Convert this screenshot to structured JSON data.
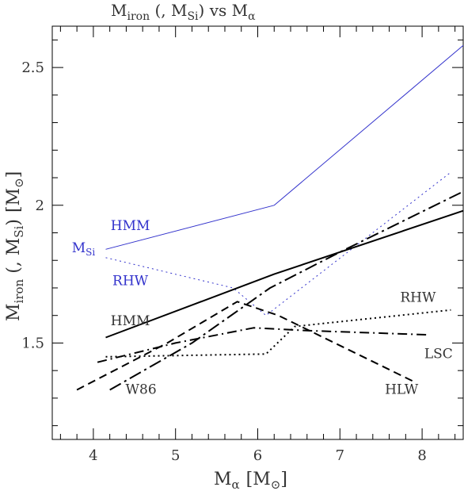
{
  "chart_data": {
    "type": "line",
    "title": {
      "prefix": "M",
      "prefix_sub": "iron",
      "mid": " (, M",
      "mid_sub": "Si",
      "suffix": ") vs M",
      "suffix_sub": "α"
    },
    "xlabel": {
      "base": "M",
      "sub": "α",
      "unit": "[M",
      "unit_sub": "⊙",
      "unit_close": "]"
    },
    "ylabel": {
      "base": "M",
      "sub": "iron",
      "mid": " (, M",
      "mid_sub": "Si",
      "close": ")",
      "unit": "[M",
      "unit_sub": "⊙",
      "unit_close": "]"
    },
    "xlim": [
      3.5,
      8.5
    ],
    "ylim": [
      1.15,
      2.65
    ],
    "x_ticks": [
      4,
      5,
      6,
      7,
      8
    ],
    "y_ticks": [
      1.5,
      2,
      2.5
    ],
    "grid": false,
    "series": [
      {
        "key": "hmm_si",
        "color": "#3333cc",
        "style": "solid",
        "width": 1,
        "x": [
          4.15,
          6.2,
          8.5
        ],
        "y": [
          1.84,
          2.0,
          2.58
        ]
      },
      {
        "key": "rhw_si",
        "color": "#3333cc",
        "style": "dotted",
        "width": 1,
        "x": [
          4.15,
          5.7,
          6.1,
          8.35
        ],
        "y": [
          1.81,
          1.7,
          1.6,
          2.12
        ]
      },
      {
        "key": "hmm",
        "color": "#000000",
        "style": "solid",
        "width": 2,
        "x": [
          4.15,
          6.2,
          8.5
        ],
        "y": [
          1.52,
          1.75,
          1.98
        ]
      },
      {
        "key": "rhw",
        "color": "#000000",
        "style": "dotted",
        "width": 2,
        "x": [
          4.15,
          6.1,
          6.45,
          8.35
        ],
        "y": [
          1.45,
          1.46,
          1.56,
          1.62
        ]
      },
      {
        "key": "lsc",
        "color": "#000000",
        "style": "dashdot",
        "width": 2,
        "x": [
          4.05,
          5.0,
          5.95,
          6.6,
          8.05
        ],
        "y": [
          1.43,
          1.5,
          1.555,
          1.545,
          1.53
        ]
      },
      {
        "key": "hlw",
        "color": "#000000",
        "style": "dashed",
        "width": 2,
        "x": [
          3.8,
          4.9,
          5.75,
          6.25,
          7.9
        ],
        "y": [
          1.33,
          1.5,
          1.65,
          1.6,
          1.36
        ]
      },
      {
        "key": "w86",
        "color": "#000000",
        "style": "longdashdot",
        "width": 2,
        "x": [
          4.2,
          5.2,
          6.15,
          7.0,
          8.5
        ],
        "y": [
          1.33,
          1.5,
          1.7,
          1.83,
          2.05
        ]
      }
    ],
    "annotations": [
      {
        "key": "a_hmm_blue",
        "text": "HMM",
        "x": 4.45,
        "y": 1.91,
        "color": "#3333cc"
      },
      {
        "key": "a_msi",
        "text": "M",
        "sub": "Si",
        "x": 3.88,
        "y": 1.83,
        "color": "#3333cc"
      },
      {
        "key": "a_rhw_blue",
        "text": "RHW",
        "x": 4.45,
        "y": 1.71,
        "color": "#3333cc"
      },
      {
        "key": "a_hmm_black",
        "text": "HMM",
        "x": 4.45,
        "y": 1.565,
        "color": "#333333"
      },
      {
        "key": "a_rhw_black",
        "text": "RHW",
        "x": 7.95,
        "y": 1.65,
        "color": "#333333"
      },
      {
        "key": "a_lsc",
        "text": "LSC",
        "x": 8.2,
        "y": 1.445,
        "color": "#333333"
      },
      {
        "key": "a_w86",
        "text": "W86",
        "x": 4.58,
        "y": 1.315,
        "color": "#333333"
      },
      {
        "key": "a_hlw",
        "text": "HLW",
        "x": 7.75,
        "y": 1.315,
        "color": "#333333"
      }
    ]
  }
}
